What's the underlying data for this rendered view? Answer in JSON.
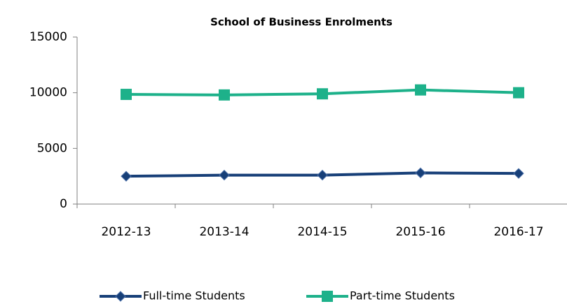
{
  "chart_data": {
    "type": "line",
    "title": "School of Business Enrolments",
    "categories": [
      "2012-13",
      "2013-14",
      "2014-15",
      "2015-16",
      "2016-17"
    ],
    "series": [
      {
        "name": "Full-time Students",
        "color": "#173f78",
        "marker": "diamond",
        "values": [
          2500,
          2600,
          2600,
          2800,
          2750
        ]
      },
      {
        "name": "Part-time Students",
        "color": "#1db18a",
        "marker": "square",
        "values": [
          9850,
          9800,
          9900,
          10250,
          10000
        ]
      }
    ],
    "ylim": [
      0,
      15000
    ],
    "yticks": [
      0,
      5000,
      10000,
      15000
    ],
    "grid": false,
    "legend": "bottom"
  }
}
